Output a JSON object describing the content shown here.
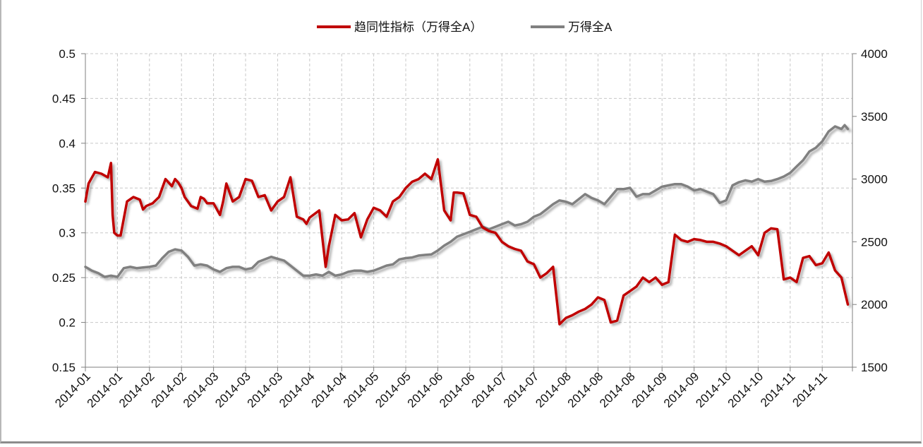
{
  "chart_data": {
    "type": "line",
    "title": "",
    "xlabel": "",
    "ylabel_left": "",
    "ylabel_right": "",
    "ylim_left": [
      0.15,
      0.5
    ],
    "ylim_right": [
      1500,
      4000
    ],
    "yticks_left": [
      "0.15",
      "0.2",
      "0.25",
      "0.3",
      "0.35",
      "0.4",
      "0.45",
      "0.5"
    ],
    "yticks_right": [
      "1500",
      "2000",
      "2500",
      "3000",
      "3500",
      "4000"
    ],
    "grid": true,
    "legend_position": "top-center",
    "categories": [
      "2014-01",
      "2014-01",
      "2014-02",
      "2014-02",
      "2014-03",
      "2014-03",
      "2014-03",
      "2014-04",
      "2014-04",
      "2014-05",
      "2014-05",
      "2014-06",
      "2014-06",
      "2014-07",
      "2014-07",
      "2014-08",
      "2014-08",
      "2014-08",
      "2014-09",
      "2014-09",
      "2014-10",
      "2014-10",
      "2014-11",
      "2014-11"
    ],
    "series": [
      {
        "name": "趋同性指标（万得全A）",
        "axis": "left",
        "color": "#c00000",
        "x": [
          0,
          0.1,
          0.3,
          0.5,
          0.7,
          0.8,
          0.85,
          0.9,
          1.0,
          1.1,
          1.3,
          1.5,
          1.7,
          1.8,
          1.9,
          2.1,
          2.3,
          2.5,
          2.7,
          2.8,
          2.9,
          3.0,
          3.1,
          3.3,
          3.5,
          3.6,
          3.7,
          3.8,
          4.0,
          4.2,
          4.3,
          4.4,
          4.5,
          4.6,
          4.8,
          5.0,
          5.2,
          5.4,
          5.6,
          5.8,
          6.0,
          6.2,
          6.4,
          6.6,
          6.8,
          6.9,
          7.0,
          7.3,
          7.5,
          7.6,
          7.8,
          8.0,
          8.2,
          8.4,
          8.6,
          8.8,
          9.0,
          9.2,
          9.4,
          9.6,
          9.8,
          10.0,
          10.2,
          10.4,
          10.6,
          10.8,
          11.0,
          11.2,
          11.4,
          11.5,
          11.6,
          11.8,
          12.0,
          12.2,
          12.4,
          12.6,
          12.8,
          13.0,
          13.2,
          13.4,
          13.6,
          13.8,
          14.0,
          14.2,
          14.4,
          14.6,
          14.8,
          15.0,
          15.2,
          15.4,
          15.6,
          15.8,
          16.0,
          16.2,
          16.4,
          16.6,
          16.8,
          17.0,
          17.2,
          17.4,
          17.6,
          17.8,
          18.0,
          18.2,
          18.4,
          18.6,
          18.8,
          19.0,
          19.2,
          19.4,
          19.6,
          19.8,
          20.0,
          20.2,
          20.4,
          20.6,
          20.8,
          21.0,
          21.2,
          21.4,
          21.6,
          21.8,
          22.0,
          22.2,
          22.4,
          22.6,
          22.8,
          23.0,
          23.2,
          23.4,
          23.6,
          23.8
        ],
        "values": [
          0.335,
          0.355,
          0.368,
          0.366,
          0.362,
          0.378,
          0.32,
          0.3,
          0.297,
          0.297,
          0.335,
          0.34,
          0.337,
          0.326,
          0.33,
          0.333,
          0.34,
          0.36,
          0.352,
          0.36,
          0.356,
          0.35,
          0.34,
          0.33,
          0.327,
          0.34,
          0.338,
          0.333,
          0.333,
          0.32,
          0.335,
          0.355,
          0.345,
          0.335,
          0.34,
          0.36,
          0.358,
          0.34,
          0.342,
          0.325,
          0.335,
          0.34,
          0.362,
          0.318,
          0.315,
          0.31,
          0.317,
          0.325,
          0.262,
          0.285,
          0.32,
          0.314,
          0.315,
          0.322,
          0.295,
          0.315,
          0.328,
          0.325,
          0.318,
          0.335,
          0.34,
          0.35,
          0.357,
          0.36,
          0.366,
          0.36,
          0.382,
          0.325,
          0.314,
          0.345,
          0.345,
          0.344,
          0.32,
          0.318,
          0.306,
          0.302,
          0.3,
          0.29,
          0.285,
          0.282,
          0.28,
          0.268,
          0.265,
          0.25,
          0.255,
          0.262,
          0.198,
          0.205,
          0.208,
          0.212,
          0.215,
          0.22,
          0.228,
          0.225,
          0.2,
          0.202,
          0.23,
          0.235,
          0.24,
          0.25,
          0.245,
          0.25,
          0.242,
          0.245,
          0.298,
          0.292,
          0.29,
          0.293,
          0.292,
          0.29,
          0.29,
          0.288,
          0.285,
          0.28,
          0.275,
          0.28,
          0.285,
          0.275,
          0.3,
          0.305,
          0.304,
          0.248,
          0.25,
          0.245,
          0.272,
          0.274,
          0.264,
          0.266,
          0.278,
          0.258,
          0.25,
          0.22
        ]
      },
      {
        "name": "万得全A",
        "axis": "right",
        "color": "#808080",
        "x": [
          0,
          0.2,
          0.4,
          0.6,
          0.8,
          1.0,
          1.2,
          1.4,
          1.6,
          1.8,
          2.0,
          2.2,
          2.4,
          2.6,
          2.8,
          3.0,
          3.2,
          3.4,
          3.6,
          3.8,
          4.0,
          4.2,
          4.4,
          4.6,
          4.8,
          5.0,
          5.2,
          5.4,
          5.6,
          5.8,
          6.0,
          6.2,
          6.4,
          6.6,
          6.8,
          7.0,
          7.2,
          7.4,
          7.6,
          7.8,
          8.0,
          8.2,
          8.4,
          8.6,
          8.8,
          9.0,
          9.2,
          9.4,
          9.6,
          9.8,
          10.0,
          10.2,
          10.4,
          10.6,
          10.8,
          11.0,
          11.2,
          11.4,
          11.6,
          11.8,
          12.0,
          12.2,
          12.4,
          12.6,
          12.8,
          13.0,
          13.2,
          13.4,
          13.6,
          13.8,
          14.0,
          14.2,
          14.4,
          14.6,
          14.8,
          15.0,
          15.2,
          15.4,
          15.6,
          15.8,
          16.0,
          16.2,
          16.4,
          16.6,
          16.8,
          17.0,
          17.2,
          17.4,
          17.6,
          17.8,
          18.0,
          18.2,
          18.4,
          18.6,
          18.8,
          19.0,
          19.2,
          19.4,
          19.6,
          19.8,
          20.0,
          20.2,
          20.4,
          20.6,
          20.8,
          21.0,
          21.2,
          21.4,
          21.6,
          21.8,
          22.0,
          22.2,
          22.4,
          22.6,
          22.8,
          23.0,
          23.2,
          23.4,
          23.6,
          23.7,
          23.8
        ],
        "values": [
          2300,
          2270,
          2250,
          2220,
          2230,
          2220,
          2290,
          2300,
          2290,
          2295,
          2300,
          2310,
          2370,
          2420,
          2440,
          2430,
          2380,
          2310,
          2320,
          2310,
          2280,
          2260,
          2290,
          2300,
          2300,
          2280,
          2290,
          2340,
          2360,
          2380,
          2365,
          2350,
          2310,
          2270,
          2230,
          2230,
          2240,
          2230,
          2260,
          2230,
          2240,
          2260,
          2270,
          2270,
          2260,
          2270,
          2290,
          2310,
          2320,
          2360,
          2370,
          2375,
          2390,
          2395,
          2400,
          2430,
          2470,
          2500,
          2540,
          2560,
          2580,
          2600,
          2620,
          2600,
          2620,
          2640,
          2660,
          2630,
          2640,
          2660,
          2700,
          2720,
          2760,
          2800,
          2830,
          2820,
          2800,
          2840,
          2880,
          2850,
          2830,
          2800,
          2860,
          2920,
          2920,
          2930,
          2860,
          2880,
          2880,
          2910,
          2940,
          2950,
          2960,
          2960,
          2940,
          2910,
          2920,
          2900,
          2880,
          2810,
          2830,
          2950,
          2975,
          2990,
          2980,
          3000,
          2980,
          2985,
          3000,
          3020,
          3050,
          3100,
          3150,
          3220,
          3250,
          3300,
          3380,
          3420,
          3400,
          3430,
          3400
        ]
      }
    ]
  }
}
